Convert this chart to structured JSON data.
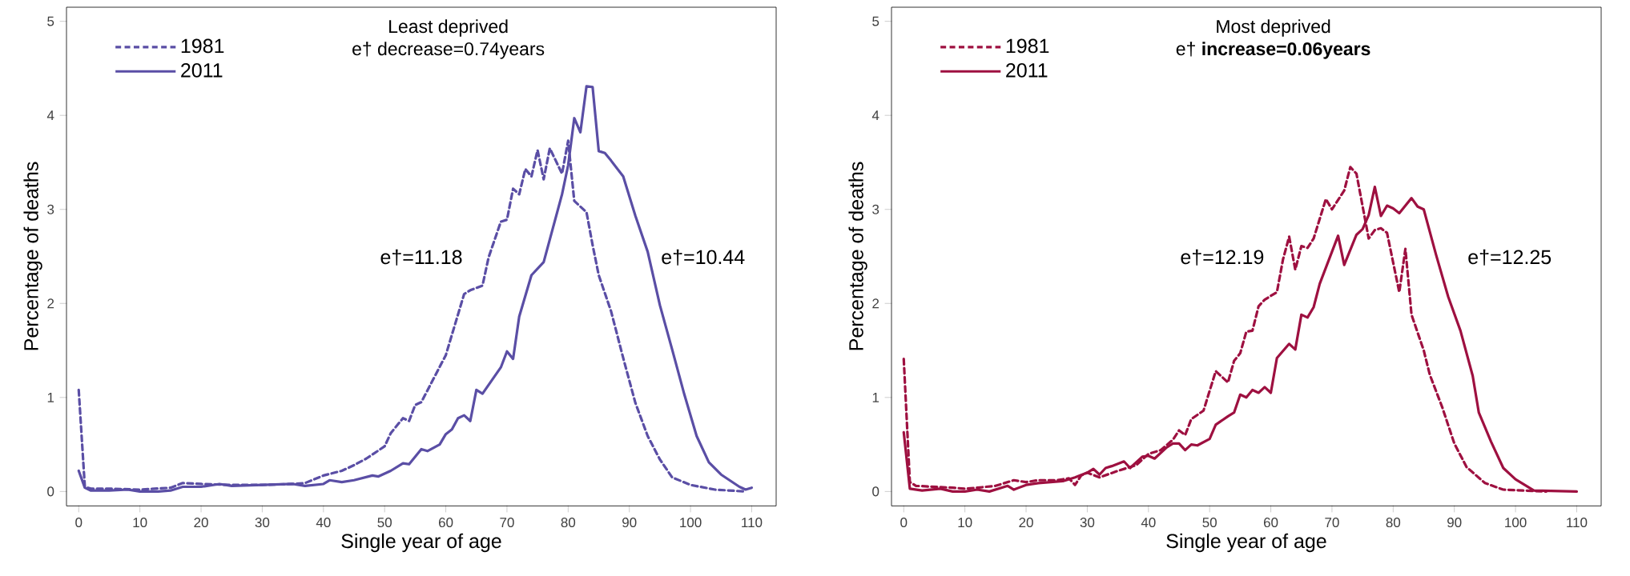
{
  "chart_data": [
    {
      "type": "line",
      "title": "Least deprived",
      "subtitle": "e† decrease=0.74years",
      "xlabel": "Single year of age",
      "ylabel": "Percentage of deaths",
      "xlim": [
        -2,
        114
      ],
      "ylim": [
        -0.15,
        5.15
      ],
      "xticks": [
        0,
        10,
        20,
        30,
        40,
        50,
        60,
        70,
        80,
        90,
        100,
        110
      ],
      "yticks": [
        0,
        1,
        2,
        3,
        4,
        5
      ],
      "legend": "top left",
      "grid": false,
      "annotations": [
        "e†=11.18",
        "e†=10.44"
      ],
      "series": [
        {
          "name": "1981",
          "color": "#5a4ea5",
          "line_style": "dashed",
          "x": [
            0,
            1,
            2,
            5,
            10,
            15,
            17,
            20,
            25,
            30,
            35,
            37,
            40,
            43,
            45,
            47,
            50,
            51,
            53,
            54,
            55,
            56,
            58,
            60,
            63,
            64,
            66,
            67,
            69,
            70,
            71,
            72,
            73,
            74,
            75,
            76,
            77,
            79,
            80,
            81,
            83,
            84,
            85,
            87,
            89,
            91,
            93,
            95,
            97,
            100,
            104,
            109
          ],
          "values": [
            1.08,
            0.05,
            0.03,
            0.03,
            0.02,
            0.04,
            0.09,
            0.08,
            0.07,
            0.07,
            0.08,
            0.09,
            0.17,
            0.22,
            0.28,
            0.35,
            0.48,
            0.62,
            0.78,
            0.75,
            0.92,
            0.95,
            1.2,
            1.45,
            2.1,
            2.14,
            2.19,
            2.49,
            2.87,
            2.89,
            3.22,
            3.16,
            3.43,
            3.35,
            3.63,
            3.32,
            3.65,
            3.38,
            3.73,
            3.09,
            2.97,
            2.62,
            2.3,
            1.92,
            1.42,
            0.94,
            0.59,
            0.34,
            0.15,
            0.07,
            0.02,
            0.0
          ]
        },
        {
          "name": "2011",
          "color": "#5a4ea5",
          "line_style": "solid",
          "x": [
            0,
            1,
            2,
            5,
            8,
            10,
            13,
            15,
            17,
            20,
            23,
            25,
            30,
            35,
            37,
            40,
            41,
            43,
            45,
            48,
            49,
            51,
            53,
            54,
            56,
            57,
            59,
            60,
            61,
            62,
            63,
            64,
            65,
            66,
            69,
            70,
            71,
            72,
            74,
            76,
            77,
            79,
            80,
            81,
            82,
            83,
            84,
            85,
            86,
            87,
            89,
            91,
            93,
            95,
            97,
            99,
            101,
            103,
            105,
            108,
            109,
            110
          ],
          "values": [
            0.22,
            0.04,
            0.01,
            0.01,
            0.02,
            0.0,
            0.0,
            0.01,
            0.05,
            0.05,
            0.08,
            0.06,
            0.07,
            0.08,
            0.06,
            0.08,
            0.12,
            0.1,
            0.12,
            0.17,
            0.16,
            0.22,
            0.3,
            0.29,
            0.45,
            0.43,
            0.5,
            0.61,
            0.66,
            0.78,
            0.81,
            0.75,
            1.08,
            1.04,
            1.32,
            1.49,
            1.41,
            1.86,
            2.3,
            2.44,
            2.68,
            3.16,
            3.47,
            3.97,
            3.82,
            4.31,
            4.3,
            3.62,
            3.6,
            3.52,
            3.35,
            2.93,
            2.55,
            1.98,
            1.51,
            1.03,
            0.59,
            0.31,
            0.18,
            0.05,
            0.02,
            0.04
          ]
        }
      ]
    },
    {
      "type": "line",
      "title": "Most deprived",
      "subtitle": "e† **increase=0.06years**",
      "xlabel": "Single year of age",
      "ylabel": "Percentage of deaths",
      "xlim": [
        -2,
        114
      ],
      "ylim": [
        -0.15,
        5.15
      ],
      "xticks": [
        0,
        10,
        20,
        30,
        40,
        50,
        60,
        70,
        80,
        90,
        100,
        110
      ],
      "yticks": [
        0,
        1,
        2,
        3,
        4,
        5
      ],
      "legend": "top left",
      "grid": false,
      "annotations": [
        "e†=12.19",
        "e†=12.25"
      ],
      "series": [
        {
          "name": "1981",
          "color": "#9e1040",
          "line_style": "dashed",
          "x": [
            0,
            1,
            2,
            5,
            8,
            10,
            12,
            15,
            18,
            20,
            22,
            25,
            27,
            28,
            29,
            30,
            32,
            35,
            38,
            40,
            42,
            44,
            45,
            46,
            47,
            49,
            51,
            53,
            54,
            55,
            56,
            57,
            58,
            59,
            61,
            62,
            63,
            64,
            65,
            66,
            67,
            69,
            70,
            72,
            73,
            74,
            76,
            77,
            78,
            79,
            81,
            82,
            83,
            85,
            86,
            88,
            90,
            92,
            95,
            98,
            105
          ],
          "values": [
            1.41,
            0.1,
            0.06,
            0.05,
            0.04,
            0.03,
            0.04,
            0.06,
            0.12,
            0.1,
            0.12,
            0.12,
            0.14,
            0.07,
            0.17,
            0.2,
            0.15,
            0.22,
            0.28,
            0.4,
            0.44,
            0.55,
            0.65,
            0.6,
            0.77,
            0.86,
            1.28,
            1.16,
            1.39,
            1.47,
            1.7,
            1.71,
            1.97,
            2.04,
            2.12,
            2.47,
            2.71,
            2.36,
            2.61,
            2.59,
            2.69,
            3.11,
            3.0,
            3.2,
            3.45,
            3.38,
            2.69,
            2.78,
            2.8,
            2.75,
            2.12,
            2.58,
            1.88,
            1.5,
            1.24,
            0.9,
            0.51,
            0.26,
            0.09,
            0.02,
            0.0
          ]
        },
        {
          "name": "2011",
          "color": "#9e1040",
          "line_style": "solid",
          "x": [
            0,
            1,
            3,
            6,
            8,
            10,
            12,
            14,
            17,
            18,
            20,
            22,
            24,
            26,
            28,
            30,
            31,
            32,
            33,
            34,
            36,
            37,
            39,
            40,
            41,
            43,
            44,
            45,
            46,
            47,
            48,
            50,
            51,
            53,
            54,
            55,
            56,
            57,
            58,
            59,
            60,
            61,
            63,
            64,
            65,
            66,
            67,
            68,
            69,
            71,
            72,
            74,
            75,
            76,
            77,
            78,
            79,
            80,
            81,
            83,
            84,
            85,
            87,
            89,
            91,
            93,
            94,
            96,
            98,
            100,
            103,
            110
          ],
          "values": [
            0.63,
            0.03,
            0.01,
            0.03,
            0.0,
            0.0,
            0.02,
            0.0,
            0.06,
            0.02,
            0.07,
            0.09,
            0.1,
            0.11,
            0.15,
            0.2,
            0.24,
            0.18,
            0.25,
            0.27,
            0.32,
            0.25,
            0.37,
            0.38,
            0.35,
            0.47,
            0.51,
            0.51,
            0.44,
            0.5,
            0.49,
            0.56,
            0.71,
            0.8,
            0.84,
            1.03,
            1.0,
            1.08,
            1.05,
            1.11,
            1.05,
            1.42,
            1.57,
            1.51,
            1.88,
            1.85,
            1.96,
            2.21,
            2.38,
            2.72,
            2.41,
            2.73,
            2.79,
            2.94,
            3.24,
            2.93,
            3.04,
            3.01,
            2.96,
            3.12,
            3.03,
            3.0,
            2.52,
            2.07,
            1.71,
            1.23,
            0.84,
            0.53,
            0.25,
            0.13,
            0.01,
            0.0
          ]
        }
      ]
    }
  ]
}
